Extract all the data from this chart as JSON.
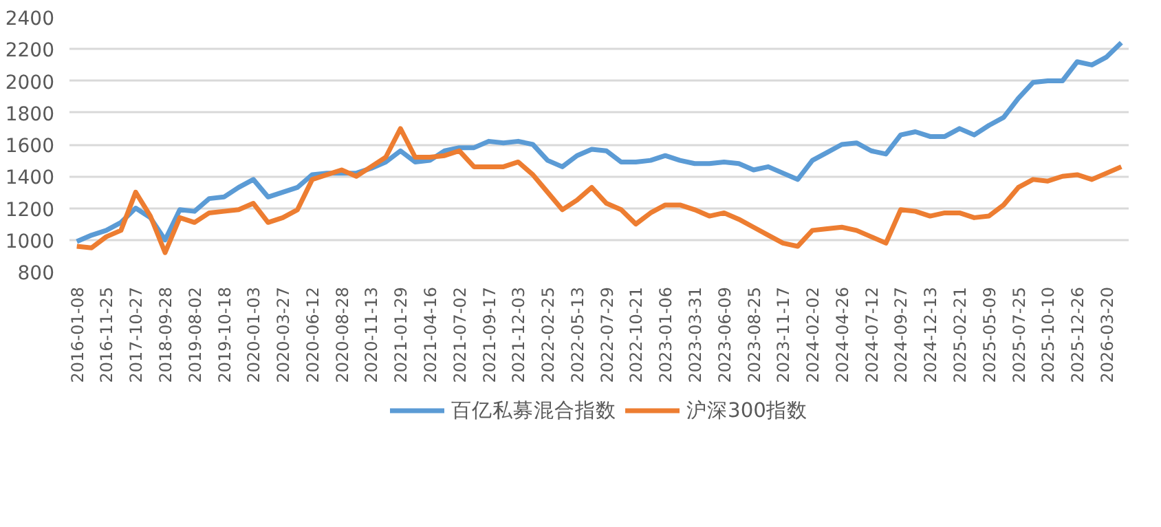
{
  "chart_data": {
    "type": "line",
    "categories": [
      "2016-01-08",
      null,
      "2016-11-25",
      null,
      "2017-10-27",
      null,
      "2018-09-28",
      null,
      "2019-08-02",
      null,
      "2019-10-18",
      null,
      "2020-01-03",
      null,
      "2020-03-27",
      null,
      "2020-06-12",
      null,
      "2020-08-28",
      null,
      "2020-11-13",
      null,
      "2021-01-29",
      null,
      "2021-04-16",
      null,
      "2021-07-02",
      null,
      "2021-09-17",
      null,
      "2021-12-03",
      null,
      "2022-02-25",
      null,
      "2022-05-13",
      null,
      "2022-07-29",
      null,
      "2022-10-21",
      null,
      "2023-01-06",
      null,
      "2023-03-31",
      null,
      "2023-06-09",
      null,
      "2023-08-25",
      null,
      "2023-11-17",
      null,
      "2024-02-02",
      null,
      "2024-04-26",
      null,
      "2024-07-12",
      null,
      "2024-09-27",
      null,
      "2024-12-13",
      null,
      "2025-02-21",
      null,
      "2025-05-09",
      null,
      "2025-07-25",
      null,
      "2025-10-10",
      null,
      "2025-12-26",
      null,
      "2026-03-20",
      null
    ],
    "series": [
      {
        "name": "百亿私募混合指数",
        "color": "#5b9bd5",
        "values": [
          990,
          1030,
          1060,
          1110,
          1200,
          1140,
          1000,
          1190,
          1180,
          1260,
          1270,
          1330,
          1380,
          1270,
          1300,
          1330,
          1410,
          1420,
          1420,
          1420,
          1450,
          1490,
          1560,
          1490,
          1500,
          1560,
          1580,
          1580,
          1620,
          1610,
          1620,
          1600,
          1500,
          1460,
          1530,
          1570,
          1560,
          1490,
          1490,
          1500,
          1530,
          1500,
          1480,
          1480,
          1490,
          1480,
          1440,
          1460,
          1420,
          1380,
          1500,
          1550,
          1600,
          1610,
          1560,
          1540,
          1660,
          1680,
          1650,
          1650,
          1700,
          1660,
          1720,
          1770,
          1890,
          1990,
          2000,
          2000,
          2120,
          2100,
          2150,
          2240
        ]
      },
      {
        "name": "沪深300指数",
        "color": "#ed7d31",
        "values": [
          960,
          950,
          1020,
          1060,
          1300,
          1150,
          920,
          1140,
          1110,
          1170,
          1180,
          1190,
          1230,
          1110,
          1140,
          1190,
          1380,
          1410,
          1440,
          1400,
          1460,
          1520,
          1700,
          1520,
          1520,
          1530,
          1560,
          1460,
          1460,
          1460,
          1490,
          1410,
          1300,
          1190,
          1250,
          1330,
          1230,
          1190,
          1100,
          1170,
          1220,
          1220,
          1190,
          1150,
          1170,
          1130,
          1080,
          1030,
          980,
          960,
          1060,
          1070,
          1080,
          1060,
          1020,
          980,
          1190,
          1180,
          1150,
          1170,
          1170,
          1140,
          1150,
          1220,
          1330,
          1380,
          1370,
          1400,
          1410,
          1380,
          1420,
          1460
        ]
      }
    ],
    "ylim": [
      800,
      2400
    ],
    "yticks": [
      800,
      1000,
      1200,
      1400,
      1600,
      1800,
      2000,
      2200,
      2400
    ],
    "grid": "y",
    "legend": "bottom",
    "line_style": "solid",
    "marker": "none"
  }
}
